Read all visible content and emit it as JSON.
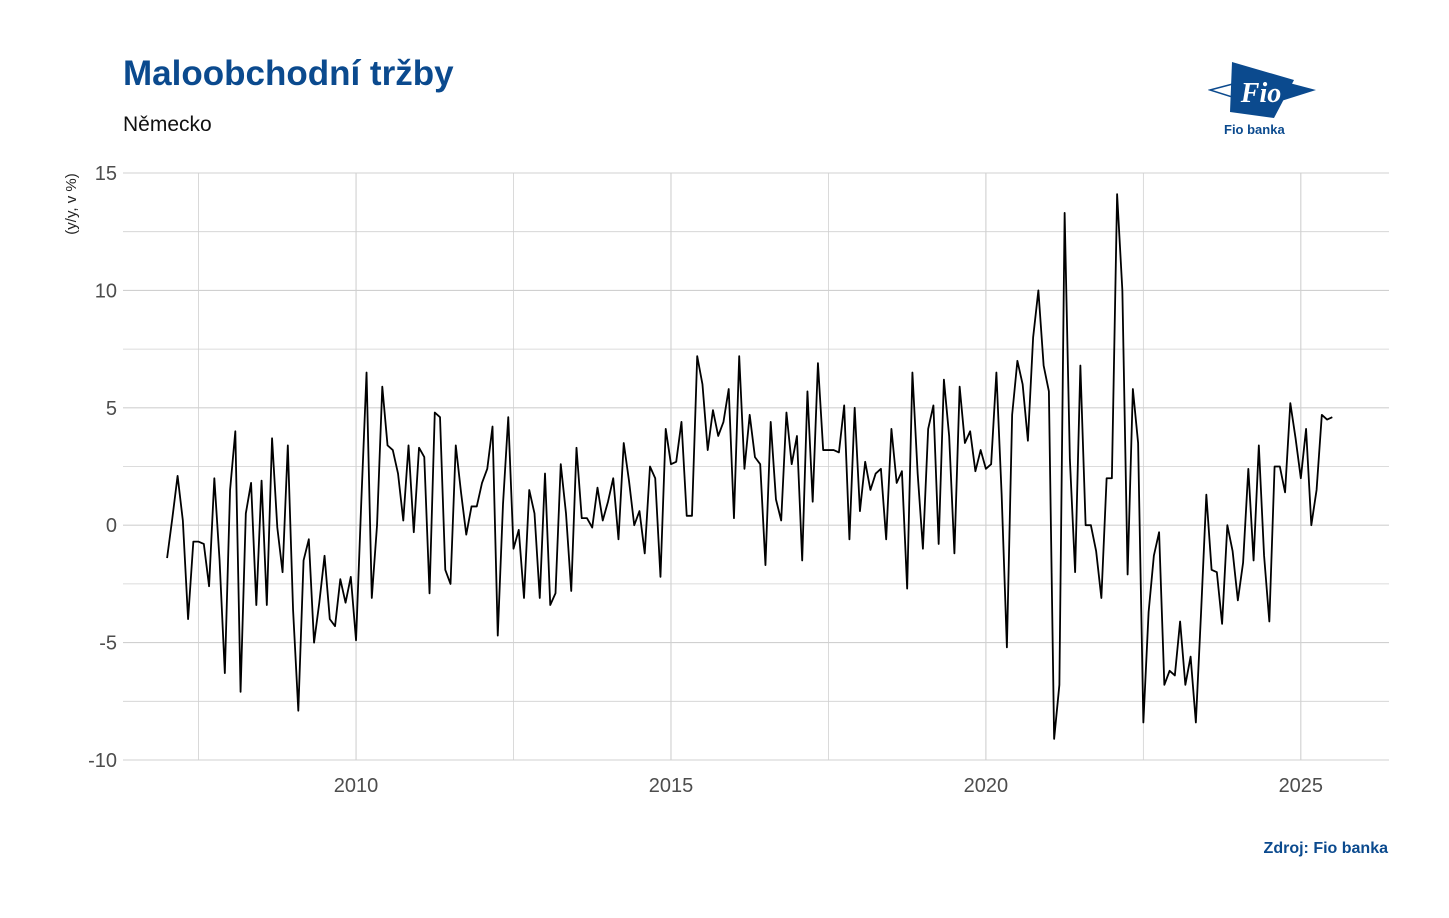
{
  "header": {
    "title": "Maloobchodní tržby",
    "subtitle": "Německo",
    "source": "Zdroj: Fio banka"
  },
  "logo": {
    "text": "Fio",
    "caption": "Fio banka",
    "color": "#0b4a8e"
  },
  "colors": {
    "brand": "#0b4a8e",
    "line": "#000000",
    "grid": "#d0d0d0"
  },
  "chart_data": {
    "type": "line",
    "title": "Maloobchodní tržby",
    "subtitle": "Německo",
    "ylabel": "(y/y, v %)",
    "xlabel": "",
    "xlim": [
      2006.3,
      2026.4
    ],
    "ylim": [
      -10,
      15
    ],
    "x_ticks": [
      2010,
      2015,
      2020,
      2025
    ],
    "y_ticks": [
      15,
      10,
      5,
      0,
      -5,
      -10
    ],
    "x_tick_labels": [
      "2010",
      "2015",
      "2020",
      "2025"
    ],
    "y_tick_labels": [
      "15",
      "10",
      "5",
      "0",
      "-5",
      "-10"
    ],
    "grid": true,
    "legend": "none",
    "series": [
      {
        "start": "2007-01",
        "frequency": "monthly",
        "values": [
          -1.4,
          0.3,
          2.1,
          0.2,
          -4.0,
          -0.7,
          -0.7,
          -0.8,
          -2.6,
          2.0,
          -1.5,
          -6.3,
          1.5,
          4.0,
          -7.1,
          0.5,
          1.8,
          -3.4,
          1.9,
          -3.4,
          3.7,
          -0.1,
          -2.0,
          3.4,
          -3.6,
          -7.9,
          -1.5,
          -0.6,
          -5.0,
          -3.3,
          -1.3,
          -4.0,
          -4.3,
          -2.3,
          -3.3,
          -2.2,
          -4.9,
          1.0,
          6.5,
          -3.1,
          0.0,
          5.9,
          3.4,
          3.2,
          2.2,
          0.2,
          3.4,
          -0.3,
          3.3,
          2.9,
          -2.9,
          4.8,
          4.6,
          -1.9,
          -2.5,
          3.4,
          1.4,
          -0.4,
          0.8,
          0.8,
          1.8,
          2.4,
          4.2,
          -4.7,
          0.9,
          4.6,
          -1.0,
          -0.2,
          -3.1,
          1.5,
          0.5,
          -3.1,
          2.2,
          -3.4,
          -2.9,
          2.6,
          0.5,
          -2.8,
          3.3,
          0.3,
          0.3,
          -0.1,
          1.6,
          0.2,
          1.0,
          2.0,
          -0.6,
          3.5,
          1.9,
          0.0,
          0.6,
          -1.2,
          2.5,
          2.0,
          -2.2,
          4.1,
          2.6,
          2.7,
          4.4,
          0.4,
          0.4,
          7.2,
          6.0,
          3.2,
          4.9,
          3.8,
          4.4,
          5.8,
          0.3,
          7.2,
          2.4,
          4.7,
          2.9,
          2.6,
          -1.7,
          4.4,
          1.1,
          0.2,
          4.8,
          2.6,
          3.8,
          -1.5,
          5.7,
          1.0,
          6.9,
          3.2,
          3.2,
          3.2,
          3.1,
          5.1,
          -0.6,
          5.0,
          0.6,
          2.7,
          1.5,
          2.2,
          2.4,
          -0.6,
          4.1,
          1.8,
          2.3,
          -2.7,
          6.5,
          2.2,
          -1.0,
          4.1,
          5.1,
          -0.8,
          6.2,
          3.8,
          -1.2,
          5.9,
          3.5,
          4.0,
          2.3,
          3.2,
          2.4,
          2.6,
          6.5,
          1.3,
          -5.2,
          4.7,
          7.0,
          6.0,
          3.6,
          8.0,
          10.0,
          6.8,
          5.7,
          -9.1,
          -6.8,
          13.3,
          2.8,
          -2.0,
          6.8,
          0.0,
          0.0,
          -1.1,
          -3.1,
          2.0,
          2.0,
          14.1,
          10.0,
          -2.1,
          5.8,
          3.5,
          -8.4,
          -3.7,
          -1.3,
          -0.3,
          -6.8,
          -6.2,
          -6.4,
          -4.1,
          -6.8,
          -5.6,
          -8.4,
          -3.7,
          1.3,
          -1.9,
          -2.0,
          -4.2,
          0.0,
          -1.1,
          -3.2,
          -1.6,
          2.4,
          -1.5,
          3.4,
          -1.3,
          -4.1,
          2.5,
          2.5,
          1.4,
          5.2,
          3.7,
          2.0,
          4.1,
          0.0,
          1.5,
          4.7,
          4.5,
          4.6
        ]
      }
    ]
  }
}
